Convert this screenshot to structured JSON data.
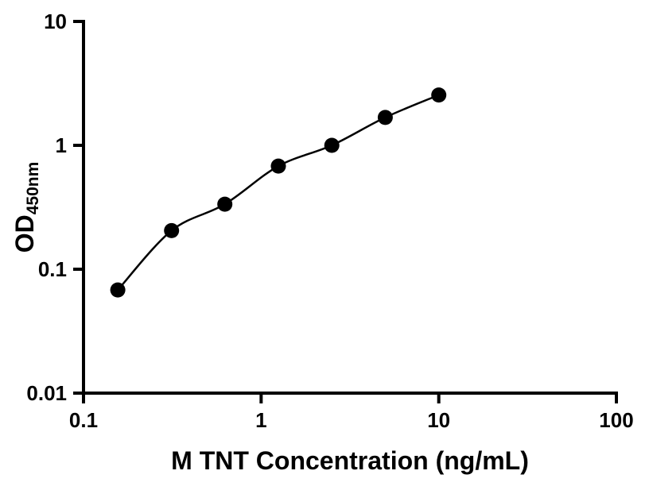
{
  "chart_data": {
    "type": "scatter",
    "title": "",
    "xlabel": "M TNT Concentration (ng/mL)",
    "ylabel_main": "OD",
    "ylabel_sub": "450nm",
    "x_scale": "log",
    "y_scale": "log",
    "xlim": [
      0.1,
      100
    ],
    "ylim": [
      0.01,
      10
    ],
    "x_ticks": [
      0.1,
      1,
      10,
      100
    ],
    "x_tick_labels": [
      "0.1",
      "1",
      "10",
      "100"
    ],
    "y_ticks": [
      0.01,
      0.1,
      1,
      10
    ],
    "y_tick_labels": [
      "0.01",
      "0.1",
      "1",
      "10"
    ],
    "x": [
      0.156,
      0.313,
      0.625,
      1.25,
      2.5,
      5,
      10
    ],
    "y": [
      0.068,
      0.205,
      0.335,
      0.68,
      1.0,
      1.68,
      2.55
    ],
    "grid": false,
    "legend": "none",
    "fit_line": true,
    "marker_shape": "circle",
    "marker_color": "#000000",
    "line_color": "#000000",
    "axis_color": "#000000",
    "background": "#ffffff"
  }
}
